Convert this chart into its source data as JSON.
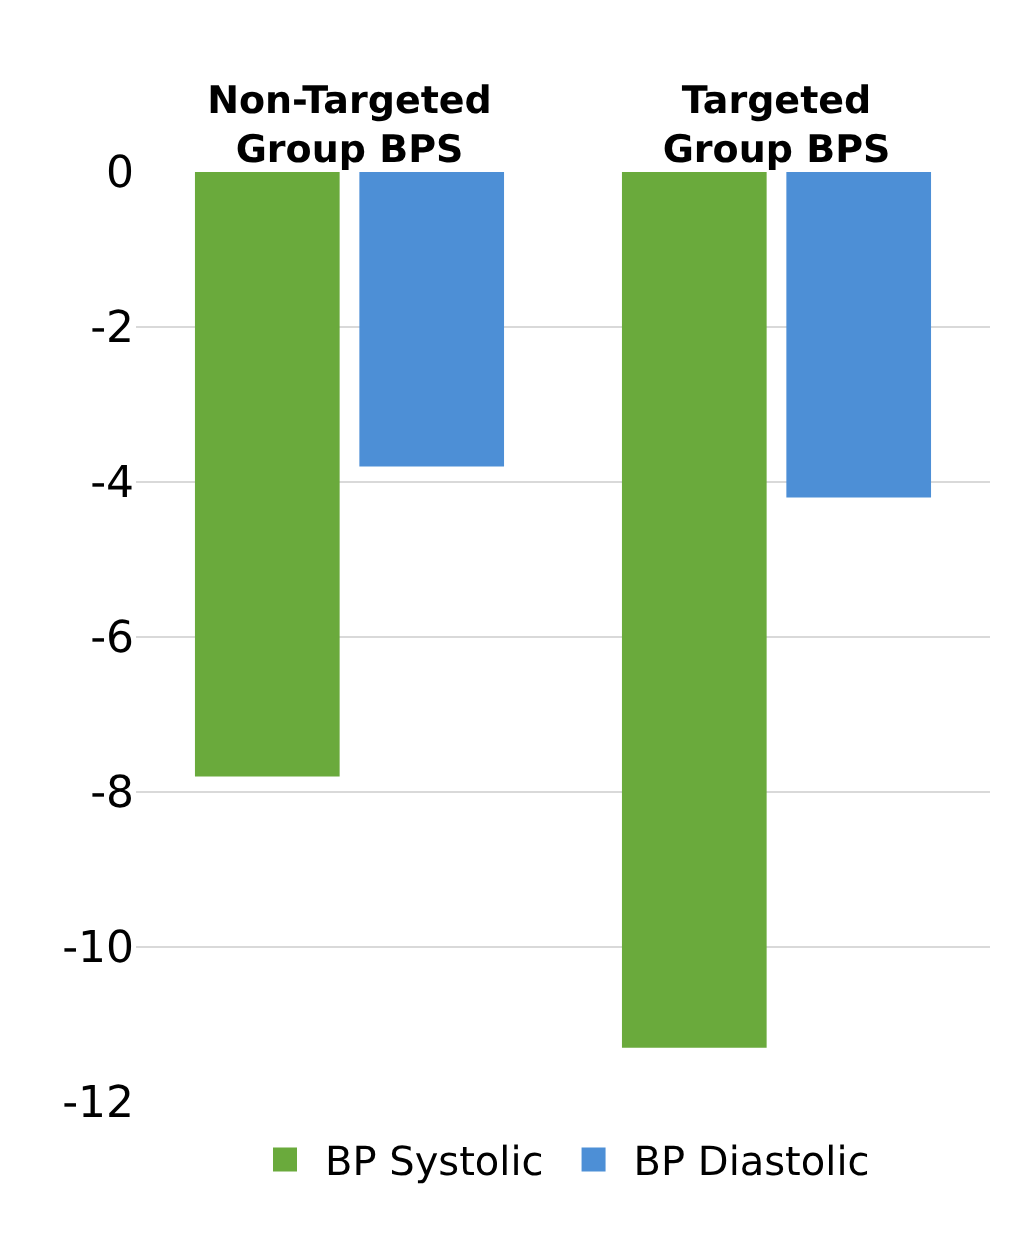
{
  "chart_data": {
    "type": "bar",
    "categories": [
      "Non-Targeted Group BPS",
      "Targeted Group BPS"
    ],
    "series": [
      {
        "name": "BP Systolic",
        "color": "#6aaa3c",
        "values": [
          -7.8,
          -11.3
        ]
      },
      {
        "name": "BP Diastolic",
        "color": "#4d8fd6",
        "values": [
          -3.8,
          -4.2
        ]
      }
    ],
    "ylim": [
      -12,
      0
    ],
    "yticks": [
      0,
      -2,
      -4,
      -6,
      -8,
      -10,
      -12
    ],
    "grid": "y",
    "legend": "bottom"
  }
}
